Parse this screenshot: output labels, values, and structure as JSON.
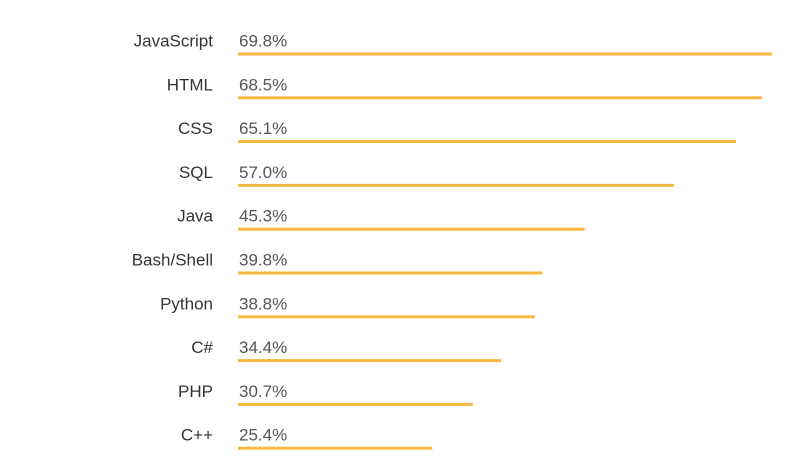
{
  "chart_data": {
    "type": "bar",
    "orientation": "horizontal",
    "categories": [
      "JavaScript",
      "HTML",
      "CSS",
      "SQL",
      "Java",
      "Bash/Shell",
      "Python",
      "C#",
      "PHP",
      "C++"
    ],
    "values": [
      69.8,
      68.5,
      65.1,
      57.0,
      45.3,
      39.8,
      38.8,
      34.4,
      30.7,
      25.4
    ],
    "value_labels": [
      "69.8%",
      "68.5%",
      "65.1%",
      "57.0%",
      "45.3%",
      "39.8%",
      "38.8%",
      "34.4%",
      "30.7%",
      "25.4%"
    ],
    "color": "#f5b841"
  }
}
